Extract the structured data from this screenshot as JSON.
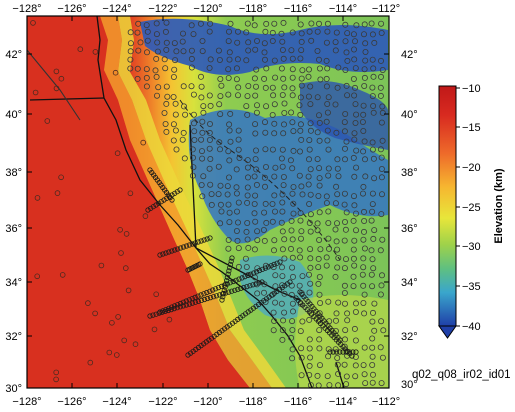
{
  "map": {
    "lon_ticks": [
      "−128°",
      "−126°",
      "−124°",
      "−122°",
      "−120°",
      "−118°",
      "−116°",
      "−114°",
      "−112°"
    ],
    "lat_ticks_left": [
      "30°",
      "32°",
      "34°",
      "36°",
      "38°",
      "40°",
      "42°"
    ],
    "lat_ticks_right": [
      "30°",
      "32°",
      "34°",
      "36°",
      "38°",
      "40°",
      "42°"
    ],
    "lon_range": [
      -128,
      -112
    ],
    "lat_range": [
      30,
      43.3
    ]
  },
  "colorbar": {
    "title": "Elevation (km)",
    "tick_labels": [
      "−10",
      "−15",
      "−20",
      "−25",
      "−30",
      "−35",
      "−40"
    ],
    "range": [
      -10,
      -40
    ],
    "colors": [
      "#1f3fa8",
      "#3a78c8",
      "#46b4c8",
      "#5fc080",
      "#9fd24a",
      "#e6e33a",
      "#f4a12a",
      "#e8522a",
      "#d62a20"
    ]
  },
  "model_id": "q02_q08_ir02_id01"
}
